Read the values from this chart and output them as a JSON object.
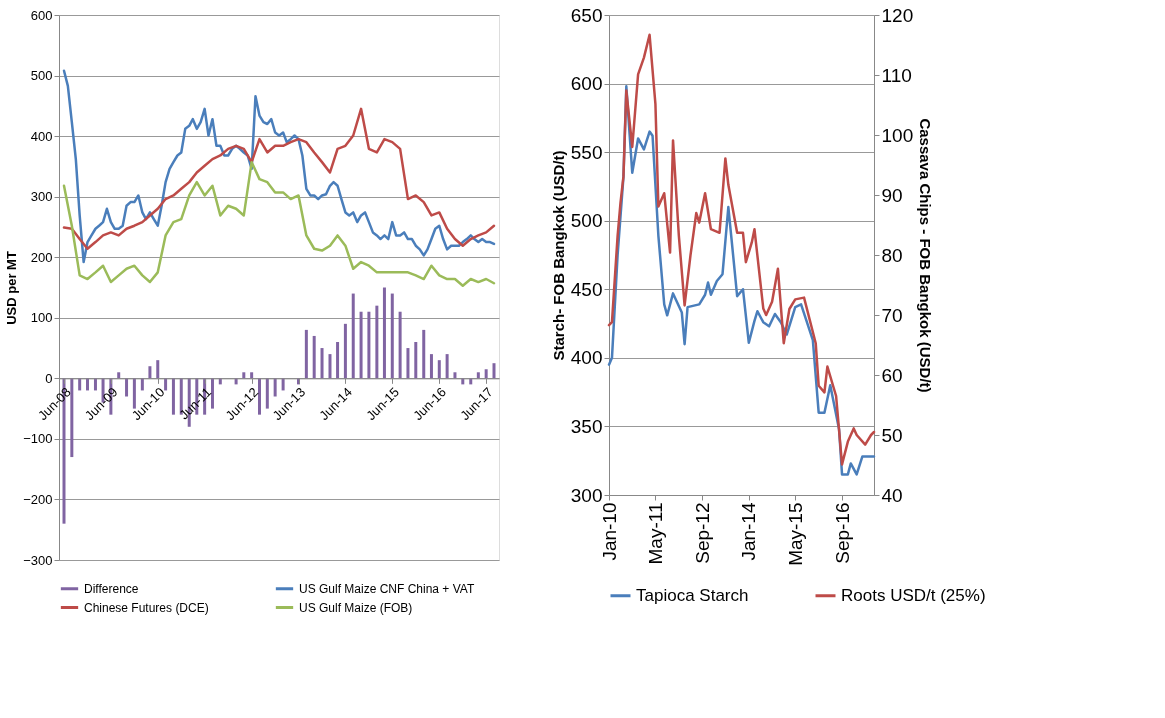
{
  "chart_data": [
    {
      "type": "line",
      "ylabel": "USD per MT",
      "ylim": [
        -300,
        600
      ],
      "yticks": [
        -300,
        -200,
        -100,
        0,
        100,
        200,
        300,
        400,
        500,
        600
      ],
      "grid": "y",
      "legend": "bottom",
      "xlim": [
        "2008-06",
        "2017-08"
      ],
      "xticks": [
        {
          "value": "2008-06",
          "label": "Jun-08"
        },
        {
          "value": "2009-06",
          "label": "Jun-09"
        },
        {
          "value": "2010-06",
          "label": "Jun-10"
        },
        {
          "value": "2011-06",
          "label": "Jun-11"
        },
        {
          "value": "2012-06",
          "label": "Jun-12"
        },
        {
          "value": "2013-06",
          "label": "Jun-13"
        },
        {
          "value": "2014-06",
          "label": "Jun-14"
        },
        {
          "value": "2015-06",
          "label": "Jun-15"
        },
        {
          "value": "2016-06",
          "label": "Jun-16"
        },
        {
          "value": "2017-06",
          "label": "Jun-17"
        }
      ],
      "x": [
        "2008-06",
        "2008-08",
        "2008-10",
        "2008-12",
        "2009-02",
        "2009-04",
        "2009-06",
        "2009-08",
        "2009-10",
        "2009-12",
        "2010-02",
        "2010-04",
        "2010-06",
        "2010-08",
        "2010-10",
        "2010-12",
        "2011-02",
        "2011-04",
        "2011-06",
        "2011-08",
        "2011-10",
        "2011-12",
        "2012-02",
        "2012-04",
        "2012-06",
        "2012-08",
        "2012-10",
        "2012-12",
        "2013-02",
        "2013-04",
        "2013-06",
        "2013-08",
        "2013-10",
        "2013-12",
        "2014-02",
        "2014-04",
        "2014-06",
        "2014-08",
        "2014-10",
        "2014-12",
        "2015-02",
        "2015-04",
        "2015-06",
        "2015-08",
        "2015-10",
        "2015-12",
        "2016-02",
        "2016-04",
        "2016-06",
        "2016-08",
        "2016-10",
        "2016-12",
        "2017-02",
        "2017-04",
        "2017-06",
        "2017-08"
      ],
      "series": [
        {
          "name": "Difference",
          "type": "bar",
          "color": "#8064a2",
          "values": [
            -240,
            -130,
            -20,
            -20,
            -20,
            -40,
            -60,
            10,
            -30,
            -50,
            -20,
            20,
            30,
            -20,
            -60,
            -60,
            -80,
            -60,
            -60,
            -50,
            -10,
            0,
            -10,
            10,
            10,
            -60,
            -50,
            -30,
            -20,
            0,
            -10,
            80,
            70,
            50,
            40,
            60,
            90,
            140,
            110,
            110,
            120,
            150,
            140,
            110,
            50,
            60,
            80,
            40,
            30,
            40,
            10,
            -10,
            -10,
            10,
            15,
            25
          ]
        },
        {
          "name": "US Gulf Maize CNF China + VAT",
          "type": "line",
          "color": "#4a7ebb",
          "x": [
            "2008-06",
            "2008-07",
            "2008-08",
            "2008-09",
            "2008-10",
            "2008-11",
            "2008-12",
            "2009-01",
            "2009-02",
            "2009-03",
            "2009-04",
            "2009-05",
            "2009-06",
            "2009-07",
            "2009-08",
            "2009-09",
            "2009-10",
            "2009-11",
            "2009-12",
            "2010-01",
            "2010-02",
            "2010-03",
            "2010-04",
            "2010-05",
            "2010-06",
            "2010-07",
            "2010-08",
            "2010-09",
            "2010-10",
            "2010-11",
            "2010-12",
            "2011-01",
            "2011-02",
            "2011-03",
            "2011-04",
            "2011-05",
            "2011-06",
            "2011-07",
            "2011-08",
            "2011-09",
            "2011-10",
            "2011-11",
            "2011-12",
            "2012-01",
            "2012-02",
            "2012-03",
            "2012-04",
            "2012-05",
            "2012-06",
            "2012-07",
            "2012-08",
            "2012-09",
            "2012-10",
            "2012-11",
            "2012-12",
            "2013-01",
            "2013-02",
            "2013-03",
            "2013-04",
            "2013-05",
            "2013-06",
            "2013-07",
            "2013-08",
            "2013-09",
            "2013-10",
            "2013-11",
            "2013-12",
            "2014-01",
            "2014-02",
            "2014-03",
            "2014-04",
            "2014-05",
            "2014-06",
            "2014-07",
            "2014-08",
            "2014-09",
            "2014-10",
            "2014-11",
            "2014-12",
            "2015-01",
            "2015-02",
            "2015-03",
            "2015-04",
            "2015-05",
            "2015-06",
            "2015-07",
            "2015-08",
            "2015-09",
            "2015-10",
            "2015-11",
            "2015-12",
            "2016-01",
            "2016-02",
            "2016-03",
            "2016-04",
            "2016-05",
            "2016-06",
            "2016-07",
            "2016-08",
            "2016-09",
            "2016-10",
            "2016-11",
            "2016-12",
            "2017-01",
            "2017-02",
            "2017-03",
            "2017-04",
            "2017-05",
            "2017-06",
            "2017-07",
            "2017-08"
          ],
          "values": [
            508,
            483,
            423,
            362,
            269,
            192,
            225,
            236,
            247,
            252,
            258,
            280,
            258,
            247,
            247,
            252,
            285,
            291,
            291,
            302,
            274,
            263,
            274,
            263,
            252,
            285,
            324,
            346,
            357,
            368,
            373,
            412,
            417,
            428,
            412,
            423,
            445,
            401,
            428,
            384,
            384,
            368,
            368,
            379,
            384,
            379,
            373,
            368,
            346,
            466,
            434,
            423,
            420,
            428,
            406,
            401,
            406,
            390,
            395,
            401,
            395,
            368,
            313,
            302,
            302,
            296,
            302,
            304,
            318,
            324,
            318,
            296,
            274,
            269,
            274,
            258,
            269,
            274,
            258,
            241,
            236,
            230,
            236,
            230,
            258,
            236,
            236,
            241,
            230,
            230,
            219,
            213,
            203,
            213,
            230,
            247,
            252,
            230,
            213,
            219,
            219,
            219,
            225,
            230,
            236,
            230,
            225,
            230,
            225,
            225,
            222
          ]
        },
        {
          "name": "Chinese Futures (DCE)",
          "type": "line",
          "color": "#be4b48",
          "values": [
            249,
            247,
            230,
            214,
            225,
            236,
            241,
            236,
            247,
            252,
            258,
            269,
            280,
            296,
            302,
            313,
            324,
            340,
            351,
            362,
            368,
            379,
            384,
            379,
            357,
            395,
            373,
            384,
            384,
            390,
            395,
            390,
            373,
            357,
            340,
            379,
            384,
            401,
            445,
            379,
            373,
            395,
            390,
            379,
            296,
            302,
            291,
            269,
            274,
            247,
            230,
            219,
            230,
            236,
            241,
            252
          ]
        },
        {
          "name": "US Gulf Maize (FOB)",
          "type": "line",
          "color": "#9bbb59",
          "values": [
            318,
            252,
            170,
            164,
            175,
            186,
            159,
            170,
            181,
            186,
            170,
            159,
            175,
            236,
            258,
            263,
            302,
            324,
            302,
            318,
            269,
            285,
            280,
            269,
            357,
            329,
            324,
            307,
            307,
            296,
            302,
            236,
            214,
            211,
            219,
            236,
            219,
            181,
            192,
            186,
            175,
            175,
            175,
            175,
            175,
            170,
            164,
            186,
            170,
            164,
            164,
            153,
            164,
            159,
            164,
            157
          ]
        }
      ]
    },
    {
      "type": "line",
      "ylabel": "Starch- FOB Bangkok (USD/t)",
      "y2label": "Cassava Chips - FOB Bangkok (USD/t)",
      "ylim": [
        300,
        650
      ],
      "yticks": [
        300,
        350,
        400,
        450,
        500,
        550,
        600,
        650
      ],
      "y2lim": [
        40,
        120
      ],
      "y2ticks": [
        40,
        50,
        60,
        70,
        80,
        90,
        100,
        110,
        120
      ],
      "grid": "y",
      "legend": "bottom",
      "xlim": [
        "2010-01",
        "2017-08"
      ],
      "xticks": [
        {
          "value": "2010-01",
          "label": "Jan-10"
        },
        {
          "value": "2011-05",
          "label": "May-11"
        },
        {
          "value": "2012-09",
          "label": "Sep-12"
        },
        {
          "value": "2014-01",
          "label": "Jan-14"
        },
        {
          "value": "2015-05",
          "label": "May-15"
        },
        {
          "value": "2016-09",
          "label": "Sep-16"
        }
      ],
      "series": [
        {
          "name": "Tapioca Starch",
          "color": "#4a7ebb",
          "x": [
            "2010-01",
            "2010-02",
            "2010-04",
            "2010-06",
            "2010-07",
            "2010-09",
            "2010-11",
            "2011-01",
            "2011-03",
            "2011-04",
            "2011-06",
            "2011-08",
            "2011-09",
            "2011-11",
            "2012-02",
            "2012-03",
            "2012-04",
            "2012-08",
            "2012-10",
            "2012-11",
            "2012-12",
            "2013-02",
            "2013-04",
            "2013-06",
            "2013-07",
            "2013-09",
            "2013-11",
            "2014-01",
            "2014-03",
            "2014-04",
            "2014-06",
            "2014-08",
            "2014-10",
            "2014-12",
            "2015-02",
            "2015-05",
            "2015-07",
            "2015-11",
            "2016-01",
            "2016-03",
            "2016-05",
            "2016-08",
            "2016-09",
            "2016-11",
            "2016-12",
            "2017-02",
            "2017-04",
            "2017-08"
          ],
          "values": [
            395,
            400,
            475,
            532,
            598,
            535,
            560,
            552,
            565,
            562,
            489,
            439,
            431,
            447,
            433,
            410,
            437,
            439,
            446,
            455,
            446,
            456,
            461,
            510,
            489,
            445,
            450,
            411,
            427,
            434,
            426,
            423,
            432,
            426,
            417,
            437,
            439,
            413,
            360,
            360,
            380,
            348,
            315,
            315,
            323,
            315,
            328,
            328
          ]
        },
        {
          "name": "Roots USD/t (25%)",
          "color": "#be4b48",
          "axis": "y2",
          "x": [
            "2010-01",
            "2010-02",
            "2010-04",
            "2010-05",
            "2010-06",
            "2010-07",
            "2010-09",
            "2010-11",
            "2011-01",
            "2011-03",
            "2011-05",
            "2011-06",
            "2011-08",
            "2011-10",
            "2011-11",
            "2012-01",
            "2012-03",
            "2012-05",
            "2012-07",
            "2012-08",
            "2012-10",
            "2012-12",
            "2013-03",
            "2013-05",
            "2013-06",
            "2013-09",
            "2013-11",
            "2013-12",
            "2014-02",
            "2014-03",
            "2014-06",
            "2014-07",
            "2014-09",
            "2014-11",
            "2015-01",
            "2015-03",
            "2015-05",
            "2015-08",
            "2015-12",
            "2016-01",
            "2016-03",
            "2016-04",
            "2016-07",
            "2016-09",
            "2016-11",
            "2017-01",
            "2017-02",
            "2017-05",
            "2017-07",
            "2017-08"
          ],
          "values": [
            68.3,
            68.8,
            83.2,
            88.7,
            93.1,
            107.4,
            98,
            110.1,
            112.9,
            116.7,
            105.2,
            88.1,
            90.3,
            80.4,
            99.1,
            83.2,
            71.6,
            79.9,
            87,
            85.4,
            90.3,
            84.3,
            83.7,
            96.1,
            91.7,
            83.7,
            83.7,
            78.8,
            82.1,
            84.3,
            71.1,
            70,
            72.2,
            77.7,
            65.3,
            71,
            72.6,
            72.9,
            65.3,
            58.2,
            57.1,
            61.4,
            56.5,
            45.1,
            48.9,
            51.1,
            50,
            48.4,
            50,
            50.5
          ]
        }
      ]
    }
  ]
}
